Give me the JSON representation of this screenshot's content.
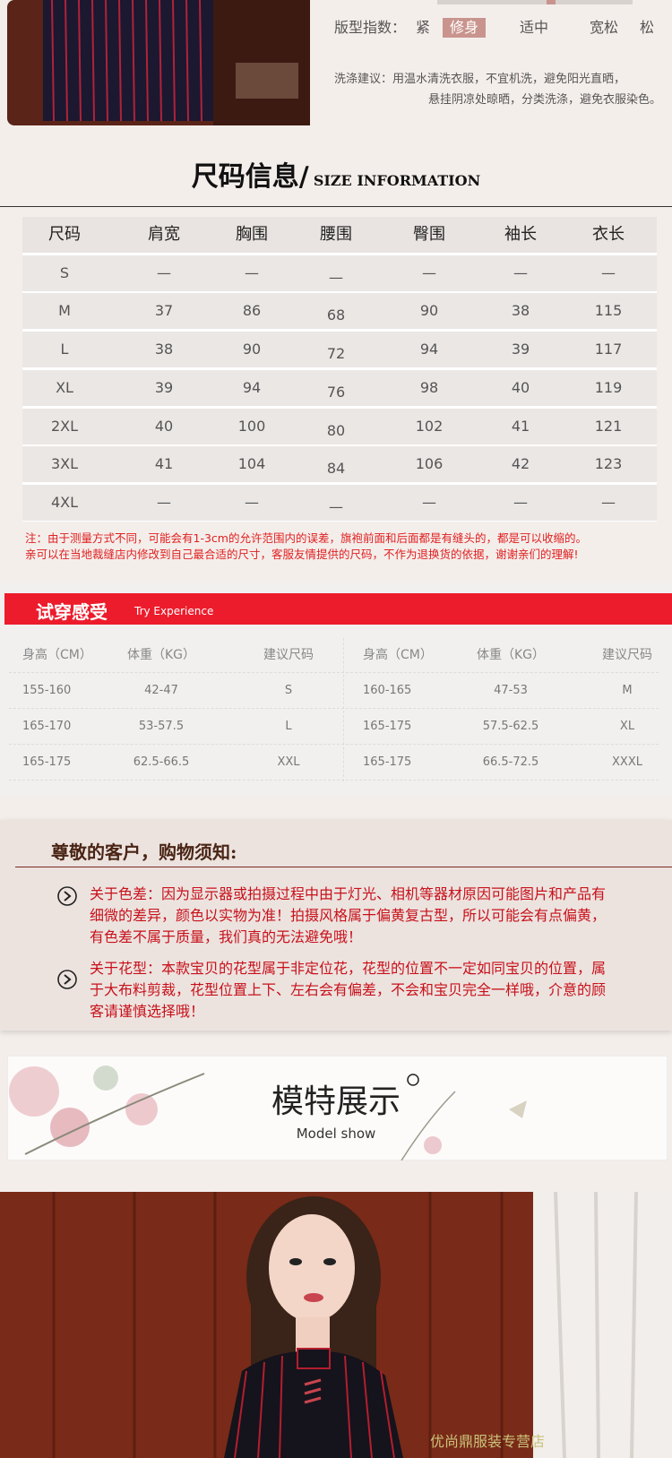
{
  "fit_index": {
    "label": "版型指数：",
    "options": [
      "紧",
      "修身",
      "适中",
      "宽松",
      "松"
    ]
  },
  "care": {
    "label": "洗涤建议：",
    "lines": [
      "用温水清洗衣服，不宜机洗，避免阳光直晒，",
      "悬挂阴凉处晾晒，分类洗涤，避免衣服染色。"
    ]
  },
  "size_info": {
    "title": "尺码信息/",
    "subtitle": "SIZE INFORMATION",
    "header": [
      "尺码",
      "肩宽",
      "胸围",
      "腰围",
      "臀围",
      "袖长",
      "衣长"
    ],
    "rows": [
      [
        "S",
        "—",
        "—",
        "—",
        "—",
        "—",
        "—"
      ],
      [
        "M",
        "37",
        "86",
        "68",
        "90",
        "38",
        "115"
      ],
      [
        "L",
        "38",
        "90",
        "72",
        "94",
        "39",
        "117"
      ],
      [
        "XL",
        "39",
        "94",
        "76",
        "98",
        "40",
        "119"
      ],
      [
        "2XL",
        "40",
        "100",
        "80",
        "102",
        "41",
        "121"
      ],
      [
        "3XL",
        "41",
        "104",
        "84",
        "106",
        "42",
        "123"
      ],
      [
        "4XL",
        "—",
        "—",
        "—",
        "—",
        "—",
        "—"
      ]
    ],
    "notes": [
      "注：由于测量方式不同，可能会有1-3cm的允许范围内的误差，旗袍前面和后面都是有缝头的，都是可以收缩的。",
      "亲可以在当地裁缝店内修改到自己最合适的尺寸，客服友情提供的尺码，不作为退换货的依据，谢谢亲们的理解!"
    ]
  },
  "try_on": {
    "title": "试穿感受",
    "subtitle": "Try Experience",
    "header": [
      "身高（CM）",
      "体重（KG）",
      "建议尺码",
      "身高（CM）",
      "体重（KG）",
      "建议尺码"
    ],
    "rows": [
      [
        "155-160",
        "42-47",
        "S",
        "160-165",
        "47-53",
        "M"
      ],
      [
        "165-170",
        "53-57.5",
        "L",
        "165-175",
        "57.5-62.5",
        "XL"
      ],
      [
        "165-175",
        "62.5-66.5",
        "XXL",
        "165-175",
        "66.5-72.5",
        "XXXL"
      ]
    ]
  },
  "notice": {
    "title": "尊敬的客户，购物须知:",
    "items": [
      "关于色差：因为显示器或拍摄过程中由于灯光、相机等器材原因可能图片和产品有细微的差异，颜色以实物为准！拍摄风格属于偏黄复古型，所以可能会有点偏黄，有色差不属于质量，我们真的无法避免哦！",
      "关于花型：本款宝贝的花型属于非定位花，花型的位置不一定如同宝贝的位置，属于大布料剪裁，花型位置上下、左右会有偏差，不会和宝贝完全一样哦，介意的顾客请谨慎选择哦！"
    ]
  },
  "model_show": {
    "title": "模特展示",
    "subtitle": "Model show"
  },
  "watermark": "优尚鼎服装专营店"
}
